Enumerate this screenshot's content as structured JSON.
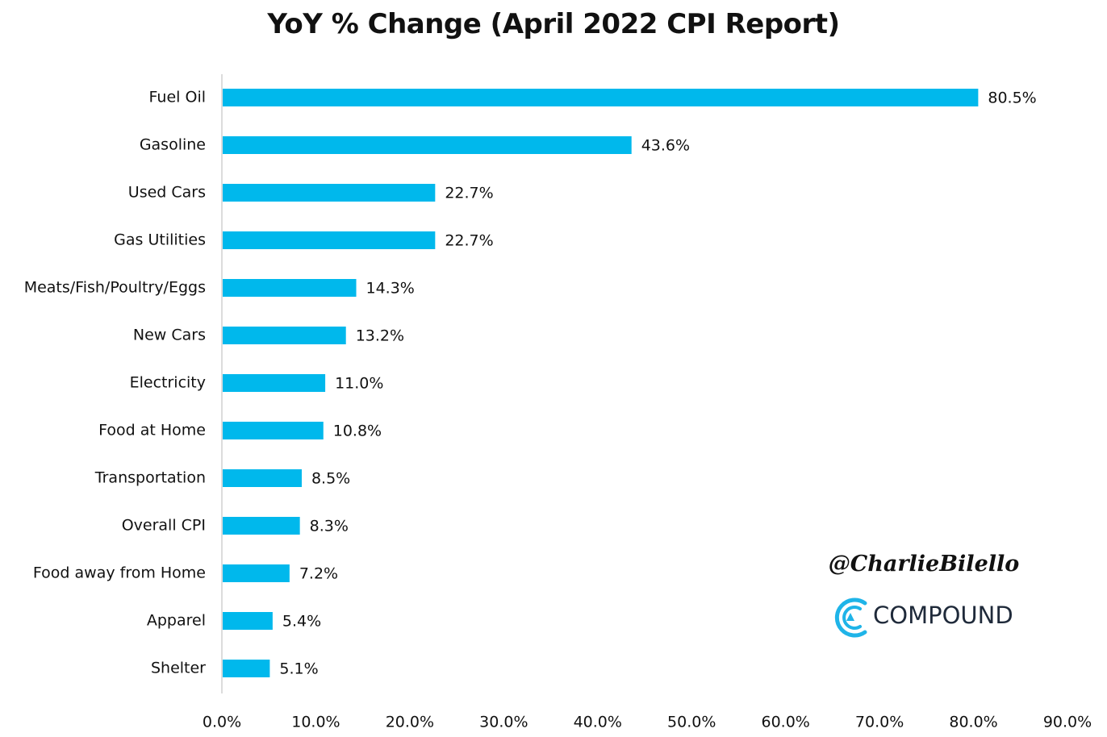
{
  "chart_data": {
    "type": "bar",
    "orientation": "horizontal",
    "title": "YoY % Change (April 2022 CPI Report)",
    "categories": [
      "Fuel Oil",
      "Gasoline",
      "Used Cars",
      "Gas Utilities",
      "Meats/Fish/Poultry/Eggs",
      "New Cars",
      "Electricity",
      "Food at Home",
      "Transportation",
      "Overall CPI",
      "Food away from Home",
      "Apparel",
      "Shelter"
    ],
    "values": [
      80.5,
      43.6,
      22.7,
      22.7,
      14.3,
      13.2,
      11.0,
      10.8,
      8.5,
      8.3,
      7.2,
      5.4,
      5.1
    ],
    "data_labels": [
      "80.5%",
      "43.6%",
      "22.7%",
      "22.7%",
      "14.3%",
      "13.2%",
      "11.0%",
      "10.8%",
      "8.5%",
      "8.3%",
      "7.2%",
      "5.4%",
      "5.1%"
    ],
    "xlim": [
      0,
      90
    ],
    "x_ticks": [
      0,
      10,
      20,
      30,
      40,
      50,
      60,
      70,
      80,
      90
    ],
    "x_tick_labels": [
      "0.0%",
      "10.0%",
      "20.0%",
      "30.0%",
      "40.0%",
      "50.0%",
      "60.0%",
      "70.0%",
      "80.0%",
      "90.0%"
    ],
    "xlabel": "",
    "ylabel": "",
    "grid": false,
    "legend": "none",
    "bar_color": "#00b8ec"
  },
  "watermark": {
    "handle": "@CharlieBilello",
    "brand": "COMPOUND"
  },
  "colors": {
    "bar": "#00b8ec",
    "axis": "#d0d0d0",
    "text": "#111111",
    "logo_accent": "#1fb4e8"
  }
}
